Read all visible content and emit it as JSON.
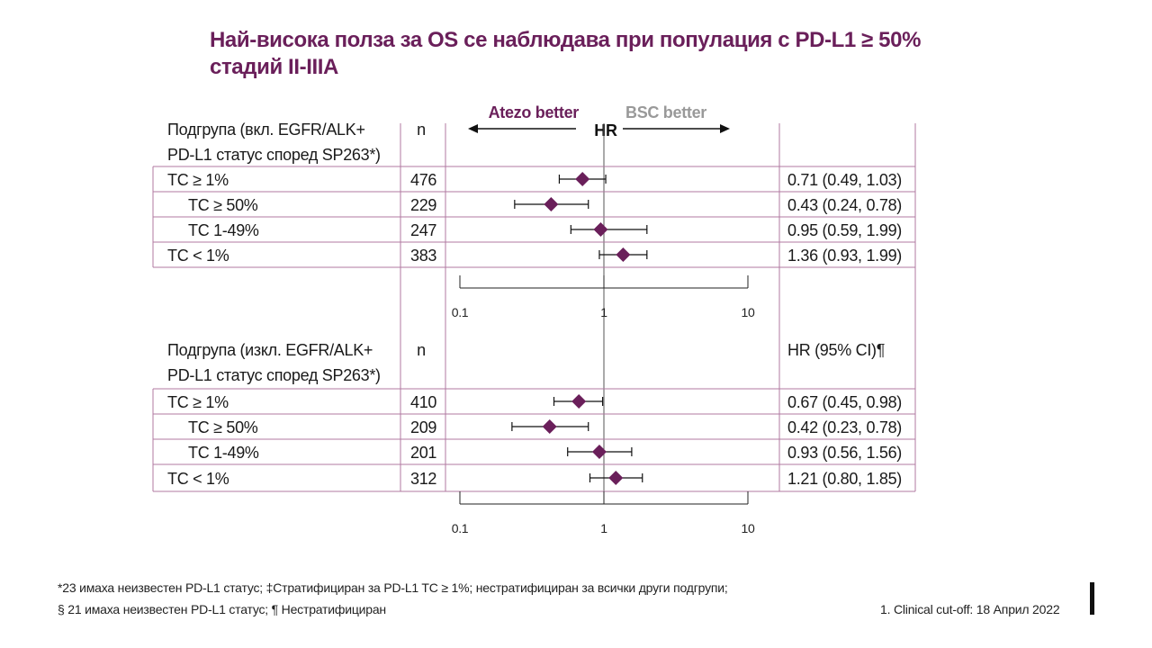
{
  "title": {
    "line1": "Най-висока полза за OS се наблюдава при популация с PD-L1 ≥ 50%",
    "line2": "стадий II-IIIA"
  },
  "chart_data": {
    "type": "forest",
    "measure": "HR",
    "x_scale": "log",
    "xlim": [
      0.1,
      10
    ],
    "x_ticks": [
      "0.1",
      "1",
      "10"
    ],
    "reference_line": 1,
    "direction_labels": {
      "left": "Atezo better",
      "right": "BSC better",
      "center": "HR"
    },
    "colors": {
      "point": "#6a1f5a",
      "grid": "#b07aa1",
      "left_label": "#6a1f5a",
      "right_label": "#999999"
    },
    "panels": [
      {
        "header": {
          "line1": "Подгрупа (вкл. EGFR/ALK+",
          "line2": "PD-L1 статус според SP263*)",
          "n": "n",
          "hr": ""
        },
        "rows": [
          {
            "label": "TC ≥ 1%",
            "indent": false,
            "n": "476",
            "hr": 0.71,
            "lo": 0.49,
            "hi": 1.03,
            "text": "0.71 (0.49, 1.03)"
          },
          {
            "label": "TC ≥ 50%",
            "indent": true,
            "n": "229",
            "hr": 0.43,
            "lo": 0.24,
            "hi": 0.78,
            "text": "0.43 (0.24, 0.78)"
          },
          {
            "label": "TC 1-49%",
            "indent": true,
            "n": "247",
            "hr": 0.95,
            "lo": 0.59,
            "hi": 1.99,
            "text": "0.95 (0.59, 1.99)"
          },
          {
            "label": "TC < 1%",
            "indent": false,
            "n": "383",
            "hr": 1.36,
            "lo": 0.93,
            "hi": 1.99,
            "text": "1.36 (0.93, 1.99)"
          }
        ]
      },
      {
        "header": {
          "line1": "Подгрупа (изкл. EGFR/ALK+",
          "line2": "PD-L1 статус според SP263*)",
          "n": "n",
          "hr": "HR (95% CI)¶"
        },
        "rows": [
          {
            "label": "TC ≥ 1%",
            "indent": false,
            "n": "410",
            "hr": 0.67,
            "lo": 0.45,
            "hi": 0.98,
            "text": "0.67 (0.45, 0.98)"
          },
          {
            "label": "TC ≥ 50%",
            "indent": true,
            "n": "209",
            "hr": 0.42,
            "lo": 0.23,
            "hi": 0.78,
            "text": "0.42 (0.23, 0.78)"
          },
          {
            "label": "TC 1-49%",
            "indent": true,
            "n": "201",
            "hr": 0.93,
            "lo": 0.56,
            "hi": 1.56,
            "text": "0.93 (0.56, 1.56)"
          },
          {
            "label": "TC < 1%",
            "indent": false,
            "n": "312",
            "hr": 1.21,
            "lo": 0.8,
            "hi": 1.85,
            "text": "1.21 (0.80, 1.85)"
          }
        ]
      }
    ]
  },
  "footnotes": {
    "line1": "*23 имаха неизвестен PD-L1 статус; ‡Стратифициран за PD-L1 TC ≥ 1%; нестратифициран за всички други подгрупи;",
    "line2": "§ 21 имаха неизвестен PD-L1 статус; ¶ Нестратифициран"
  },
  "reference": "1.   Clinical cut-off: 18 Април 2022"
}
